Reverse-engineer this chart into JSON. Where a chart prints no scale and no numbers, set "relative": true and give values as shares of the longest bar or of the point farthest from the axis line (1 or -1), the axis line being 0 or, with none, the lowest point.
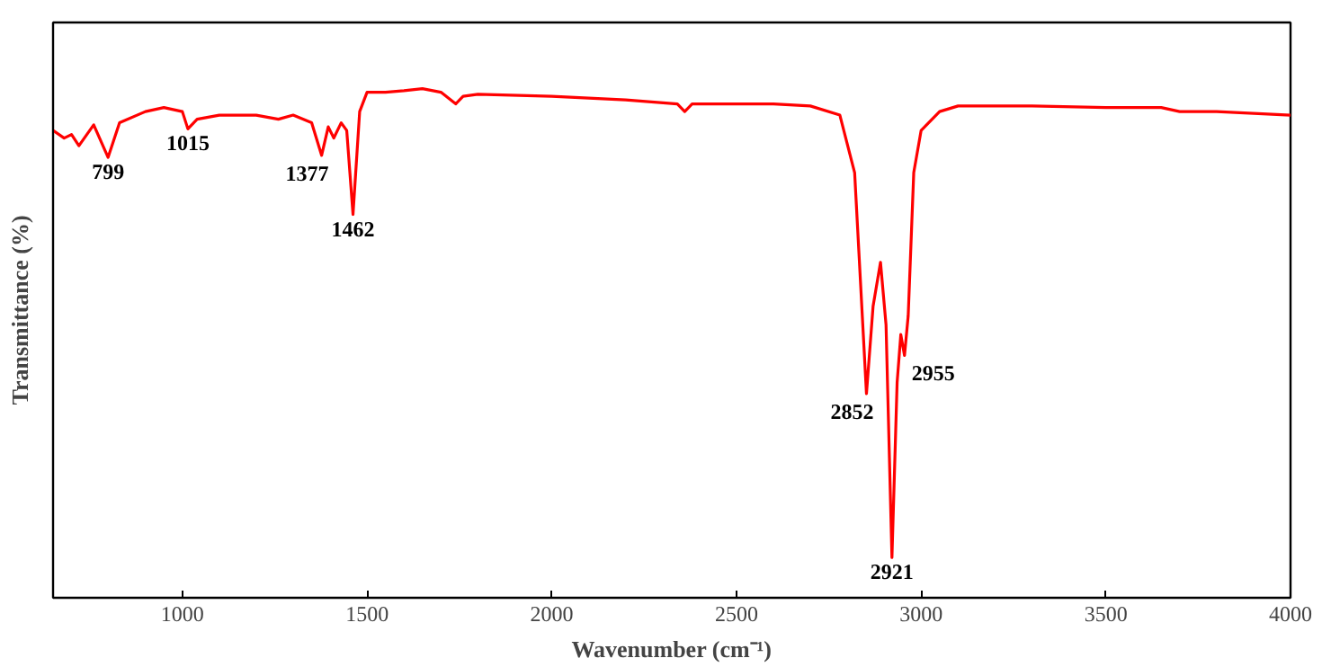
{
  "chart_data": {
    "type": "line",
    "relative": true,
    "xlabel": "Wavenumber (cm⁻¹)",
    "ylabel": "Transmittance (%)",
    "tick_labels": "x",
    "grid": false,
    "xlim": [
      650,
      4000
    ],
    "xticks": [
      1000,
      1500,
      2000,
      2500,
      3000,
      3500,
      4000
    ],
    "series": [
      {
        "color": "#ff0000",
        "x": [
          650,
          680,
          700,
          720,
          760,
          799,
          830,
          900,
          950,
          1000,
          1015,
          1040,
          1100,
          1200,
          1260,
          1300,
          1350,
          1377,
          1395,
          1410,
          1430,
          1445,
          1462,
          1480,
          1500,
          1550,
          1600,
          1650,
          1700,
          1740,
          1760,
          1800,
          2000,
          2200,
          2340,
          2360,
          2380,
          2500,
          2600,
          2700,
          2780,
          2820,
          2852,
          2870,
          2890,
          2905,
          2921,
          2935,
          2945,
          2955,
          2965,
          2980,
          3000,
          3050,
          3100,
          3300,
          3500,
          3650,
          3700,
          3800,
          4000
        ],
        "values": [
          0.918,
          0.903,
          0.91,
          0.888,
          0.929,
          0.865,
          0.933,
          0.955,
          0.963,
          0.955,
          0.921,
          0.94,
          0.948,
          0.948,
          0.94,
          0.948,
          0.933,
          0.869,
          0.925,
          0.903,
          0.933,
          0.918,
          0.753,
          0.955,
          0.993,
          0.993,
          0.996,
          1.0,
          0.993,
          0.97,
          0.985,
          0.989,
          0.985,
          0.978,
          0.97,
          0.955,
          0.97,
          0.97,
          0.97,
          0.966,
          0.948,
          0.835,
          0.401,
          0.573,
          0.659,
          0.536,
          0.079,
          0.423,
          0.517,
          0.476,
          0.554,
          0.835,
          0.918,
          0.955,
          0.966,
          0.966,
          0.963,
          0.963,
          0.955,
          0.955,
          0.948
        ]
      }
    ],
    "annotations": [
      {
        "text": "799",
        "x": 799,
        "y": 0.865
      },
      {
        "text": "1015",
        "x": 1015,
        "y": 0.921
      },
      {
        "text": "1377",
        "x": 1377,
        "y": 0.869
      },
      {
        "text": "1462",
        "x": 1462,
        "y": 0.753
      },
      {
        "text": "2852",
        "x": 2852,
        "y": 0.401
      },
      {
        "text": "2921",
        "x": 2921,
        "y": 0.079
      },
      {
        "text": "2955",
        "x": 2955,
        "y": 0.476
      }
    ]
  }
}
